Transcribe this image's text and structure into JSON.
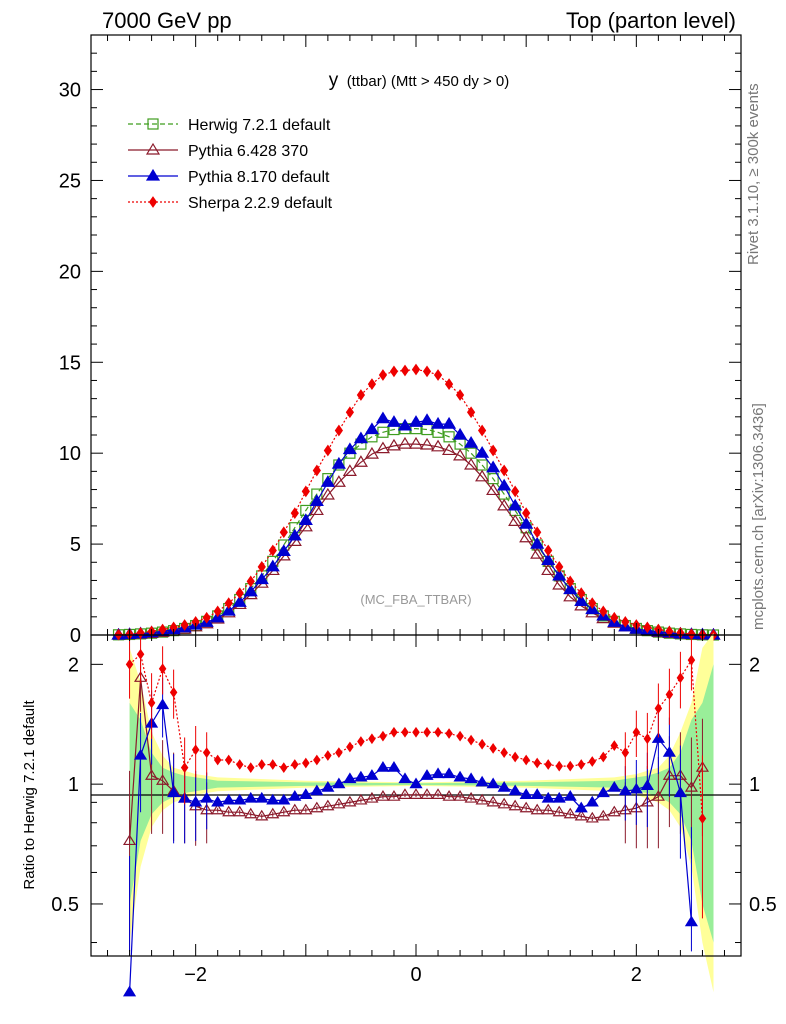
{
  "header": {
    "left_title": "7000 GeV pp",
    "right_title": "Top (parton level)"
  },
  "side_labels": {
    "rivet": "Rivet 3.1.10, ≥ 300k events",
    "mcplots": "mcplots.cern.ch [arXiv:1306.3436]"
  },
  "chart_data": [
    {
      "type": "line",
      "panel": "main",
      "title_main": "y",
      "title_sub": "(ttbar) (Mtt > 450 dy > 0)",
      "watermark": "(MC_FBA_TTBAR)",
      "xlabel": "",
      "ylabel": "",
      "xlim": [
        -2.95,
        2.95
      ],
      "ylim": [
        0,
        33
      ],
      "yticks": [
        0,
        5,
        10,
        15,
        20,
        25,
        30
      ],
      "ytick_labels": [
        "0",
        "5",
        "10",
        "15",
        "20",
        "25",
        "30"
      ],
      "legend_position": "top-left",
      "x": [
        -2.7,
        -2.6,
        -2.5,
        -2.4,
        -2.3,
        -2.2,
        -2.1,
        -2.0,
        -1.9,
        -1.8,
        -1.7,
        -1.6,
        -1.5,
        -1.4,
        -1.3,
        -1.2,
        -1.1,
        -1.0,
        -0.9,
        -0.8,
        -0.7,
        -0.6,
        -0.5,
        -0.4,
        -0.3,
        -0.2,
        -0.1,
        0.0,
        0.1,
        0.2,
        0.3,
        0.4,
        0.5,
        0.6,
        0.7,
        0.8,
        0.9,
        1.0,
        1.1,
        1.2,
        1.3,
        1.4,
        1.5,
        1.6,
        1.7,
        1.8,
        1.9,
        2.0,
        2.1,
        2.2,
        2.3,
        2.4,
        2.5,
        2.6,
        2.7
      ],
      "series": [
        {
          "name": "Herwig 7.2.1 default",
          "color": "#3f9d1f",
          "marker": "open-square",
          "linestyle": "dashed",
          "values": [
            0.01,
            0.03,
            0.06,
            0.1,
            0.16,
            0.24,
            0.36,
            0.52,
            0.75,
            1.05,
            1.45,
            1.95,
            2.55,
            3.25,
            4.05,
            4.95,
            5.9,
            6.85,
            7.75,
            8.6,
            9.35,
            10.0,
            10.5,
            10.9,
            11.15,
            11.3,
            11.35,
            11.35,
            11.3,
            11.15,
            10.9,
            10.5,
            10.0,
            9.35,
            8.6,
            7.75,
            6.85,
            5.9,
            4.95,
            4.05,
            3.25,
            2.55,
            1.95,
            1.45,
            1.05,
            0.75,
            0.52,
            0.36,
            0.24,
            0.16,
            0.1,
            0.06,
            0.03,
            0.01,
            0.0
          ]
        },
        {
          "name": "Pythia 6.428 370",
          "color": "#8b1a2b",
          "marker": "open-triangle",
          "linestyle": "solid",
          "values": [
            0.0,
            0.02,
            0.05,
            0.09,
            0.15,
            0.22,
            0.32,
            0.45,
            0.62,
            0.88,
            1.22,
            1.68,
            2.22,
            2.85,
            3.55,
            4.35,
            5.15,
            5.95,
            6.85,
            7.7,
            8.4,
            9.0,
            9.5,
            9.95,
            10.25,
            10.4,
            10.5,
            10.5,
            10.45,
            10.35,
            10.15,
            9.85,
            9.35,
            8.7,
            7.95,
            7.1,
            6.25,
            5.35,
            4.45,
            3.55,
            2.75,
            2.1,
            1.6,
            1.22,
            0.9,
            0.65,
            0.45,
            0.32,
            0.22,
            0.14,
            0.09,
            0.05,
            0.02,
            0.0,
            0.0
          ]
        },
        {
          "name": "Pythia 8.170 default",
          "color": "#0000d0",
          "marker": "filled-triangle",
          "linestyle": "solid",
          "values": [
            0.0,
            0.03,
            0.07,
            0.13,
            0.2,
            0.3,
            0.4,
            0.55,
            0.7,
            0.95,
            1.32,
            1.8,
            2.38,
            3.05,
            3.75,
            4.6,
            5.45,
            6.3,
            7.35,
            8.4,
            9.4,
            10.2,
            10.8,
            11.3,
            11.9,
            11.7,
            11.5,
            11.7,
            11.8,
            11.6,
            11.6,
            11.0,
            10.55,
            10.0,
            9.2,
            8.2,
            7.1,
            6.1,
            5.0,
            4.1,
            3.25,
            2.5,
            1.85,
            1.4,
            1.05,
            0.7,
            0.45,
            0.32,
            0.25,
            0.18,
            0.12,
            0.06,
            0.03,
            0.01,
            0.0
          ]
        },
        {
          "name": "Sherpa 2.2.9 default",
          "color": "#ee0000",
          "marker": "filled-diamond",
          "linestyle": "dotted",
          "values": [
            0.02,
            0.05,
            0.12,
            0.2,
            0.3,
            0.42,
            0.55,
            0.72,
            0.95,
            1.3,
            1.75,
            2.3,
            2.95,
            3.75,
            4.65,
            5.65,
            6.7,
            7.9,
            9.05,
            10.15,
            11.25,
            12.25,
            13.2,
            13.8,
            14.3,
            14.5,
            14.55,
            14.6,
            14.5,
            14.3,
            13.8,
            13.2,
            12.25,
            11.25,
            10.15,
            9.05,
            7.9,
            6.7,
            5.65,
            4.65,
            3.75,
            2.95,
            2.3,
            1.75,
            1.3,
            0.95,
            0.72,
            0.55,
            0.42,
            0.3,
            0.2,
            0.12,
            0.05,
            0.02,
            0.0
          ]
        }
      ]
    },
    {
      "type": "line",
      "panel": "ratio",
      "ylabel": "Ratio to Herwig 7.2.1 default",
      "xlim": [
        -2.95,
        2.95
      ],
      "ylim": [
        0.37,
        2.37
      ],
      "xticks": [
        -2,
        0,
        2
      ],
      "xtick_labels": [
        "−2",
        "0",
        "2"
      ],
      "yticks": [
        0.5,
        1,
        2
      ],
      "ytick_labels": [
        "0.5",
        "1",
        "2"
      ],
      "reference_band": {
        "x": [
          -2.6,
          -2.5,
          -2.4,
          -2.3,
          -2.2,
          -2.1,
          -2.0,
          -1.9,
          -1.8,
          -1.0,
          0.0,
          1.0,
          1.8,
          1.9,
          2.0,
          2.1,
          2.2,
          2.3,
          2.4,
          2.5,
          2.6,
          2.7
        ],
        "yellow_low": [
          0.4,
          0.62,
          0.78,
          0.86,
          0.9,
          0.92,
          0.94,
          0.95,
          0.96,
          0.98,
          0.99,
          0.98,
          0.96,
          0.95,
          0.94,
          0.92,
          0.9,
          0.86,
          0.78,
          0.62,
          0.4,
          0.3
        ],
        "yellow_high": [
          2.2,
          1.8,
          1.35,
          1.18,
          1.1,
          1.08,
          1.06,
          1.05,
          1.04,
          1.02,
          1.01,
          1.02,
          1.04,
          1.05,
          1.06,
          1.08,
          1.1,
          1.18,
          1.35,
          1.6,
          2.2,
          2.4
        ],
        "green_low": [
          0.5,
          0.72,
          0.84,
          0.9,
          0.93,
          0.95,
          0.96,
          0.97,
          0.98,
          0.99,
          0.995,
          0.99,
          0.98,
          0.97,
          0.96,
          0.95,
          0.93,
          0.9,
          0.84,
          0.72,
          0.5,
          0.4
        ],
        "green_high": [
          1.6,
          1.45,
          1.2,
          1.1,
          1.07,
          1.05,
          1.04,
          1.03,
          1.02,
          1.01,
          1.005,
          1.01,
          1.02,
          1.03,
          1.04,
          1.05,
          1.07,
          1.1,
          1.2,
          1.45,
          1.6,
          2.0
        ]
      },
      "series": [
        {
          "name": "Pythia 6.428 370",
          "color": "#8b1a2b",
          "x": [
            -2.6,
            -2.5,
            -2.4,
            -2.3,
            -2.2,
            -2.1,
            -2.0,
            -1.9,
            -1.8,
            -1.7,
            -1.6,
            -1.5,
            -1.4,
            -1.3,
            -1.2,
            -1.1,
            -1.0,
            -0.9,
            -0.8,
            -0.7,
            -0.6,
            -0.5,
            -0.4,
            -0.3,
            -0.2,
            -0.1,
            0.0,
            0.1,
            0.2,
            0.3,
            0.4,
            0.5,
            0.6,
            0.7,
            0.8,
            0.9,
            1.0,
            1.1,
            1.2,
            1.3,
            1.4,
            1.5,
            1.6,
            1.7,
            1.8,
            1.9,
            2.0,
            2.1,
            2.2,
            2.3,
            2.4,
            2.5,
            2.6
          ],
          "values": [
            0.72,
            1.85,
            1.05,
            1.02,
            0.96,
            0.92,
            0.88,
            0.86,
            0.86,
            0.85,
            0.85,
            0.84,
            0.83,
            0.84,
            0.85,
            0.86,
            0.86,
            0.87,
            0.88,
            0.89,
            0.9,
            0.91,
            0.92,
            0.93,
            0.93,
            0.94,
            0.94,
            0.94,
            0.94,
            0.93,
            0.93,
            0.92,
            0.91,
            0.9,
            0.89,
            0.88,
            0.87,
            0.86,
            0.86,
            0.85,
            0.84,
            0.83,
            0.82,
            0.83,
            0.85,
            0.86,
            0.87,
            0.9,
            0.93,
            1.05,
            1.05,
            0.98,
            1.1
          ]
        },
        {
          "name": "Pythia 8.170 default",
          "color": "#0000d0",
          "x": [
            -2.6,
            -2.5,
            -2.4,
            -2.3,
            -2.2,
            -2.1,
            -2.0,
            -1.9,
            -1.8,
            -1.7,
            -1.6,
            -1.5,
            -1.4,
            -1.3,
            -1.2,
            -1.1,
            -1.0,
            -0.9,
            -0.8,
            -0.7,
            -0.6,
            -0.5,
            -0.4,
            -0.3,
            -0.2,
            -0.1,
            0.0,
            0.1,
            0.2,
            0.3,
            0.4,
            0.5,
            0.6,
            0.7,
            0.8,
            0.9,
            1.0,
            1.1,
            1.2,
            1.3,
            1.4,
            1.5,
            1.6,
            1.7,
            1.8,
            1.9,
            2.0,
            2.1,
            2.2,
            2.3,
            2.4,
            2.5
          ],
          "values": [
            0.3,
            1.18,
            1.42,
            1.58,
            0.95,
            0.92,
            0.9,
            0.92,
            0.9,
            0.91,
            0.91,
            0.92,
            0.92,
            0.91,
            0.91,
            0.93,
            0.94,
            0.96,
            0.98,
            1.0,
            1.03,
            1.04,
            1.05,
            1.1,
            1.1,
            1.03,
            1.0,
            1.05,
            1.06,
            1.06,
            1.04,
            1.03,
            1.01,
            1.0,
            0.98,
            0.96,
            0.94,
            0.94,
            0.92,
            0.92,
            0.93,
            0.87,
            0.9,
            0.95,
            0.98,
            0.96,
            0.97,
            0.99,
            1.3,
            1.2,
            0.95,
            0.45
          ]
        },
        {
          "name": "Sherpa 2.2.9 default",
          "color": "#ee0000",
          "x": [
            -2.6,
            -2.5,
            -2.4,
            -2.3,
            -2.2,
            -2.1,
            -2.0,
            -1.9,
            -1.8,
            -1.7,
            -1.6,
            -1.5,
            -1.4,
            -1.3,
            -1.2,
            -1.1,
            -1.0,
            -0.9,
            -0.8,
            -0.7,
            -0.6,
            -0.5,
            -0.4,
            -0.3,
            -0.2,
            -0.1,
            0.0,
            0.1,
            0.2,
            0.3,
            0.4,
            0.5,
            0.6,
            0.7,
            0.8,
            0.9,
            1.0,
            1.1,
            1.2,
            1.3,
            1.4,
            1.5,
            1.6,
            1.7,
            1.8,
            1.9,
            2.0,
            2.1,
            2.2,
            2.3,
            2.4,
            2.5,
            2.6
          ],
          "values": [
            2.0,
            2.12,
            1.6,
            1.95,
            1.7,
            1.1,
            1.22,
            1.2,
            1.15,
            1.15,
            1.12,
            1.1,
            1.12,
            1.12,
            1.1,
            1.12,
            1.13,
            1.15,
            1.18,
            1.2,
            1.24,
            1.28,
            1.3,
            1.32,
            1.35,
            1.35,
            1.35,
            1.35,
            1.35,
            1.34,
            1.32,
            1.29,
            1.26,
            1.23,
            1.2,
            1.17,
            1.15,
            1.13,
            1.12,
            1.11,
            1.11,
            1.12,
            1.14,
            1.17,
            1.25,
            1.2,
            1.35,
            1.3,
            1.55,
            1.68,
            1.85,
            2.05,
            0.82
          ]
        }
      ]
    }
  ]
}
